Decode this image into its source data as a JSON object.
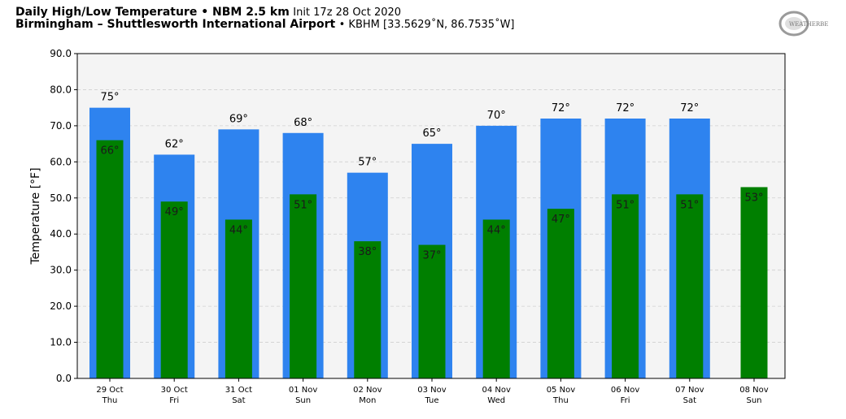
{
  "header": {
    "title_bold": "Daily High/Low Temperature • NBM 2.5 km",
    "title_init": "Init 17z 28 Oct 2020",
    "location_bold": "Birmingham – Shuttlesworth International Airport",
    "location_detail": "• KBHM [33.5629˚N, 86.7535˚W]"
  },
  "logo": {
    "text": "WEATHERBELL"
  },
  "colors": {
    "high": "#2e83ef",
    "low": "#007f00",
    "plot_bg": "#f4f4f4"
  },
  "chart_data": {
    "type": "bar",
    "ylabel": "Temperature [°F]",
    "ylim": [
      0,
      90
    ],
    "yticks": [
      "0.0",
      "10.0",
      "20.0",
      "30.0",
      "40.0",
      "50.0",
      "60.0",
      "70.0",
      "80.0",
      "90.0"
    ],
    "grid": true,
    "categories": [
      {
        "date": "29 Oct",
        "day": "Thu"
      },
      {
        "date": "30 Oct",
        "day": "Fri"
      },
      {
        "date": "31 Oct",
        "day": "Sat"
      },
      {
        "date": "01 Nov",
        "day": "Sun"
      },
      {
        "date": "02 Nov",
        "day": "Mon"
      },
      {
        "date": "03 Nov",
        "day": "Tue"
      },
      {
        "date": "04 Nov",
        "day": "Wed"
      },
      {
        "date": "05 Nov",
        "day": "Thu"
      },
      {
        "date": "06 Nov",
        "day": "Fri"
      },
      {
        "date": "07 Nov",
        "day": "Sat"
      },
      {
        "date": "08 Nov",
        "day": "Sun"
      }
    ],
    "series": [
      {
        "key": "high",
        "values": [
          75,
          62,
          69,
          68,
          57,
          65,
          70,
          72,
          72,
          72,
          null
        ],
        "labels": [
          "75°",
          "62°",
          "69°",
          "68°",
          "57°",
          "65°",
          "70°",
          "72°",
          "72°",
          "72°",
          ""
        ]
      },
      {
        "key": "low",
        "values": [
          66,
          49,
          44,
          51,
          38,
          37,
          44,
          47,
          51,
          51,
          53
        ],
        "labels": [
          "66°",
          "49°",
          "44°",
          "51°",
          "38°",
          "37°",
          "44°",
          "47°",
          "51°",
          "51°",
          "53°"
        ]
      }
    ]
  }
}
